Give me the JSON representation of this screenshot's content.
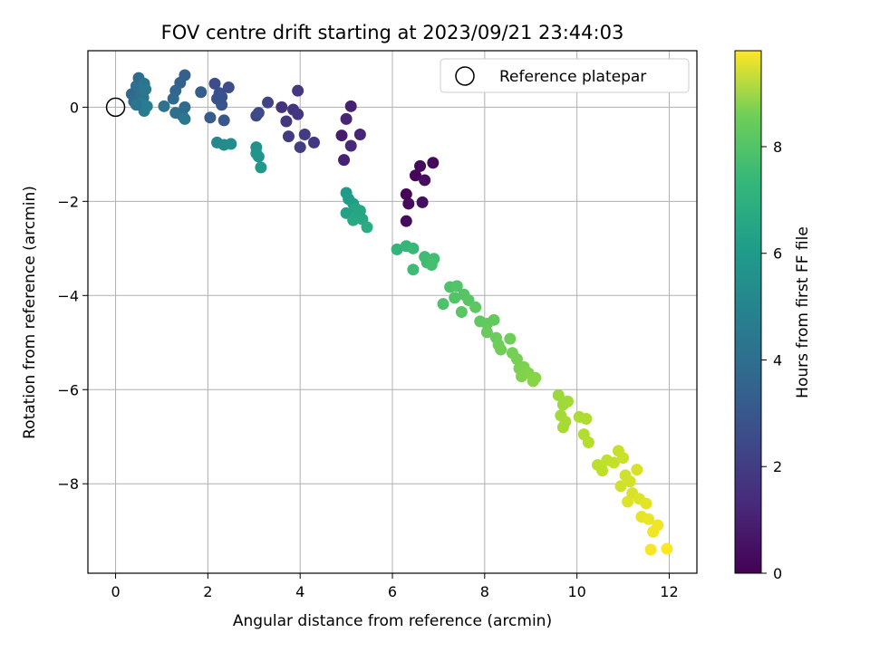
{
  "chart_data": {
    "type": "scatter",
    "title": "FOV centre drift starting at 2023/09/21 23:44:03",
    "xlabel": "Angular distance from reference (arcmin)",
    "ylabel": "Rotation from reference (arcmin)",
    "xlim": [
      -0.6,
      12.6
    ],
    "ylim": [
      -9.9,
      1.2
    ],
    "xticks": [
      0,
      2,
      4,
      6,
      8,
      10,
      12
    ],
    "yticks": [
      0,
      -2,
      -4,
      -6,
      -8
    ],
    "grid": true,
    "legend": {
      "label": "Reference platepar",
      "placement": "top-right"
    },
    "reference_point": {
      "x": 0,
      "y": 0
    },
    "colorbar": {
      "label": "Hours from first FF file",
      "min": 0,
      "max": 9.8,
      "ticks": [
        0,
        2,
        4,
        6,
        8
      ],
      "colormap": "viridis"
    },
    "points": [
      {
        "x": 6.3,
        "y": -1.85,
        "c": 0.1
      },
      {
        "x": 6.35,
        "y": -2.05,
        "c": 0.2
      },
      {
        "x": 6.3,
        "y": -2.42,
        "c": 0.3
      },
      {
        "x": 6.5,
        "y": -1.45,
        "c": 0.15
      },
      {
        "x": 6.6,
        "y": -1.25,
        "c": 0.25
      },
      {
        "x": 6.7,
        "y": -1.55,
        "c": 0.35
      },
      {
        "x": 6.65,
        "y": -2.02,
        "c": 0.4
      },
      {
        "x": 6.88,
        "y": -1.18,
        "c": 0.2
      },
      {
        "x": 4.9,
        "y": -0.6,
        "c": 0.8
      },
      {
        "x": 4.95,
        "y": -1.12,
        "c": 0.9
      },
      {
        "x": 5.0,
        "y": -0.25,
        "c": 1.0
      },
      {
        "x": 5.1,
        "y": 0.02,
        "c": 0.9
      },
      {
        "x": 5.1,
        "y": -0.82,
        "c": 1.1
      },
      {
        "x": 5.3,
        "y": -0.58,
        "c": 1.0
      },
      {
        "x": 3.6,
        "y": 0.0,
        "c": 1.5
      },
      {
        "x": 3.7,
        "y": -0.3,
        "c": 1.6
      },
      {
        "x": 3.75,
        "y": -0.62,
        "c": 1.7
      },
      {
        "x": 3.85,
        "y": -0.05,
        "c": 1.5
      },
      {
        "x": 3.95,
        "y": -0.15,
        "c": 1.6
      },
      {
        "x": 3.95,
        "y": 0.35,
        "c": 1.55
      },
      {
        "x": 4.0,
        "y": -0.85,
        "c": 1.8
      },
      {
        "x": 4.1,
        "y": -0.58,
        "c": 1.7
      },
      {
        "x": 4.3,
        "y": -0.75,
        "c": 1.6
      },
      {
        "x": 3.3,
        "y": 0.1,
        "c": 2.0
      },
      {
        "x": 3.05,
        "y": -0.18,
        "c": 2.1
      },
      {
        "x": 3.1,
        "y": -0.12,
        "c": 2.2
      },
      {
        "x": 2.15,
        "y": 0.5,
        "c": 2.3
      },
      {
        "x": 2.25,
        "y": 0.3,
        "c": 2.4
      },
      {
        "x": 2.45,
        "y": 0.42,
        "c": 2.3
      },
      {
        "x": 2.2,
        "y": 0.18,
        "c": 2.5
      },
      {
        "x": 2.3,
        "y": 0.05,
        "c": 2.6
      },
      {
        "x": 2.35,
        "y": -0.28,
        "c": 2.7
      },
      {
        "x": 2.05,
        "y": -0.22,
        "c": 2.8
      },
      {
        "x": 2.3,
        "y": 0.22,
        "c": 2.5
      },
      {
        "x": 1.85,
        "y": 0.32,
        "c": 2.9
      },
      {
        "x": 1.5,
        "y": 0.68,
        "c": 3.0
      },
      {
        "x": 1.4,
        "y": 0.52,
        "c": 3.1
      },
      {
        "x": 1.3,
        "y": 0.35,
        "c": 3.2
      },
      {
        "x": 1.25,
        "y": 0.18,
        "c": 3.3
      },
      {
        "x": 1.5,
        "y": 0.0,
        "c": 3.4
      },
      {
        "x": 1.45,
        "y": -0.18,
        "c": 3.5
      },
      {
        "x": 1.3,
        "y": -0.12,
        "c": 3.6
      },
      {
        "x": 1.05,
        "y": 0.02,
        "c": 3.7
      },
      {
        "x": 1.5,
        "y": -0.25,
        "c": 3.9
      },
      {
        "x": 0.35,
        "y": 0.28,
        "c": 3.3
      },
      {
        "x": 0.4,
        "y": 0.12,
        "c": 3.4
      },
      {
        "x": 0.45,
        "y": 0.45,
        "c": 3.5
      },
      {
        "x": 0.5,
        "y": 0.62,
        "c": 3.4
      },
      {
        "x": 0.55,
        "y": 0.3,
        "c": 3.6
      },
      {
        "x": 0.6,
        "y": 0.2,
        "c": 3.7
      },
      {
        "x": 0.62,
        "y": 0.5,
        "c": 3.8
      },
      {
        "x": 0.65,
        "y": 0.38,
        "c": 3.9
      },
      {
        "x": 0.55,
        "y": 0.08,
        "c": 4.0
      },
      {
        "x": 0.62,
        "y": -0.08,
        "c": 4.1
      },
      {
        "x": 0.68,
        "y": 0.02,
        "c": 4.2
      },
      {
        "x": 0.45,
        "y": 0.05,
        "c": 3.8
      },
      {
        "x": 2.2,
        "y": -0.75,
        "c": 4.6
      },
      {
        "x": 2.35,
        "y": -0.8,
        "c": 4.7
      },
      {
        "x": 2.5,
        "y": -0.78,
        "c": 4.8
      },
      {
        "x": 3.05,
        "y": -0.85,
        "c": 4.9
      },
      {
        "x": 3.1,
        "y": -1.05,
        "c": 5.0
      },
      {
        "x": 3.05,
        "y": -0.98,
        "c": 5.1
      },
      {
        "x": 3.15,
        "y": -1.28,
        "c": 5.2
      },
      {
        "x": 5.0,
        "y": -1.82,
        "c": 5.3
      },
      {
        "x": 5.05,
        "y": -1.95,
        "c": 5.4
      },
      {
        "x": 5.15,
        "y": -2.05,
        "c": 5.5
      },
      {
        "x": 5.0,
        "y": -2.25,
        "c": 5.6
      },
      {
        "x": 5.2,
        "y": -2.15,
        "c": 5.7
      },
      {
        "x": 5.25,
        "y": -2.3,
        "c": 5.8
      },
      {
        "x": 5.35,
        "y": -2.38,
        "c": 5.9
      },
      {
        "x": 5.45,
        "y": -2.55,
        "c": 6.0
      },
      {
        "x": 5.15,
        "y": -2.4,
        "c": 5.9
      },
      {
        "x": 5.3,
        "y": -2.2,
        "c": 5.8
      },
      {
        "x": 6.1,
        "y": -3.02,
        "c": 6.4
      },
      {
        "x": 6.3,
        "y": -2.95,
        "c": 6.5
      },
      {
        "x": 6.45,
        "y": -3.0,
        "c": 6.6
      },
      {
        "x": 6.7,
        "y": -3.18,
        "c": 6.7
      },
      {
        "x": 6.75,
        "y": -3.3,
        "c": 6.75
      },
      {
        "x": 6.9,
        "y": -3.22,
        "c": 6.8
      },
      {
        "x": 6.85,
        "y": -3.35,
        "c": 6.85
      },
      {
        "x": 6.45,
        "y": -3.45,
        "c": 6.7
      },
      {
        "x": 7.1,
        "y": -4.18,
        "c": 7.0
      },
      {
        "x": 7.25,
        "y": -3.82,
        "c": 7.05
      },
      {
        "x": 7.4,
        "y": -3.8,
        "c": 7.1
      },
      {
        "x": 7.55,
        "y": -3.98,
        "c": 7.15
      },
      {
        "x": 7.35,
        "y": -4.05,
        "c": 7.1
      },
      {
        "x": 7.65,
        "y": -4.1,
        "c": 7.2
      },
      {
        "x": 7.5,
        "y": -4.35,
        "c": 7.25
      },
      {
        "x": 7.8,
        "y": -4.25,
        "c": 7.3
      },
      {
        "x": 7.9,
        "y": -4.55,
        "c": 7.35
      },
      {
        "x": 8.05,
        "y": -4.6,
        "c": 7.4
      },
      {
        "x": 8.2,
        "y": -4.52,
        "c": 7.45
      },
      {
        "x": 8.05,
        "y": -4.78,
        "c": 7.5
      },
      {
        "x": 8.25,
        "y": -4.9,
        "c": 7.55
      },
      {
        "x": 8.3,
        "y": -5.05,
        "c": 7.6
      },
      {
        "x": 8.35,
        "y": -5.15,
        "c": 7.65
      },
      {
        "x": 8.55,
        "y": -4.92,
        "c": 7.6
      },
      {
        "x": 8.6,
        "y": -5.22,
        "c": 7.7
      },
      {
        "x": 8.7,
        "y": -5.35,
        "c": 7.75
      },
      {
        "x": 8.75,
        "y": -5.55,
        "c": 7.8
      },
      {
        "x": 8.85,
        "y": -5.52,
        "c": 7.85
      },
      {
        "x": 8.8,
        "y": -5.72,
        "c": 7.9
      },
      {
        "x": 8.95,
        "y": -5.65,
        "c": 7.95
      },
      {
        "x": 9.05,
        "y": -5.82,
        "c": 8.0
      },
      {
        "x": 9.1,
        "y": -5.75,
        "c": 8.0
      },
      {
        "x": 9.6,
        "y": -6.12,
        "c": 8.3
      },
      {
        "x": 9.7,
        "y": -6.32,
        "c": 8.35
      },
      {
        "x": 9.8,
        "y": -6.25,
        "c": 8.4
      },
      {
        "x": 9.65,
        "y": -6.55,
        "c": 8.45
      },
      {
        "x": 9.75,
        "y": -6.68,
        "c": 8.5
      },
      {
        "x": 9.7,
        "y": -6.8,
        "c": 8.5
      },
      {
        "x": 10.05,
        "y": -6.58,
        "c": 8.55
      },
      {
        "x": 10.2,
        "y": -6.62,
        "c": 8.6
      },
      {
        "x": 10.15,
        "y": -6.95,
        "c": 8.65
      },
      {
        "x": 10.25,
        "y": -7.12,
        "c": 8.7
      },
      {
        "x": 10.45,
        "y": -7.6,
        "c": 8.8
      },
      {
        "x": 10.55,
        "y": -7.72,
        "c": 8.85
      },
      {
        "x": 10.65,
        "y": -7.5,
        "c": 8.9
      },
      {
        "x": 10.8,
        "y": -7.55,
        "c": 8.95
      },
      {
        "x": 10.9,
        "y": -7.3,
        "c": 9.0
      },
      {
        "x": 11.0,
        "y": -7.45,
        "c": 9.05
      },
      {
        "x": 11.05,
        "y": -7.82,
        "c": 9.1
      },
      {
        "x": 10.95,
        "y": -8.05,
        "c": 9.1
      },
      {
        "x": 11.15,
        "y": -7.95,
        "c": 9.15
      },
      {
        "x": 11.3,
        "y": -7.7,
        "c": 9.2
      },
      {
        "x": 11.2,
        "y": -8.2,
        "c": 9.25
      },
      {
        "x": 11.35,
        "y": -8.32,
        "c": 9.3
      },
      {
        "x": 11.1,
        "y": -8.38,
        "c": 9.3
      },
      {
        "x": 11.5,
        "y": -8.42,
        "c": 9.4
      },
      {
        "x": 11.4,
        "y": -8.7,
        "c": 9.45
      },
      {
        "x": 11.55,
        "y": -8.75,
        "c": 9.5
      },
      {
        "x": 11.75,
        "y": -8.88,
        "c": 9.6
      },
      {
        "x": 11.65,
        "y": -9.02,
        "c": 9.6
      },
      {
        "x": 11.6,
        "y": -9.4,
        "c": 9.7
      },
      {
        "x": 11.95,
        "y": -9.38,
        "c": 9.8
      }
    ]
  }
}
